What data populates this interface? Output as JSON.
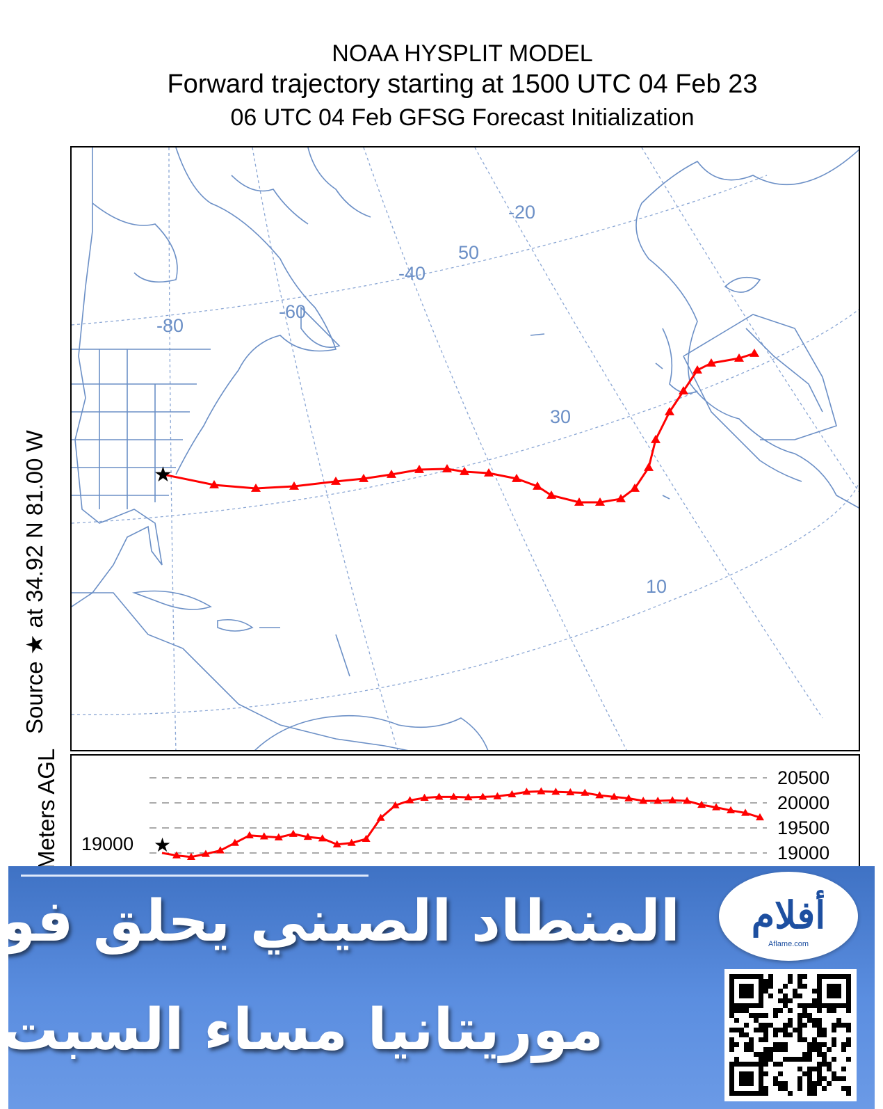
{
  "titles": {
    "line1": "NOAA HYSPLIT MODEL",
    "line2": "Forward trajectory starting at 1500 UTC 04 Feb 23",
    "line3": "06 UTC 04 Feb    GFSG  Forecast Initialization"
  },
  "side_label": "Source ★   at   34.92 N   81.00 W",
  "map": {
    "grid_labels": [
      "-20",
      "50",
      "-40",
      "-60",
      "-80",
      "30",
      "10"
    ],
    "colors": {
      "land": "#6b8fc6",
      "trajectory": "#ff0000",
      "grid": "#8aa6d4"
    },
    "source_marker": "star-icon"
  },
  "chart_data": {
    "type": "line",
    "title": "",
    "ylabel": "Meters AGL",
    "y_ticks_right": [
      "20500",
      "20000",
      "19500",
      "19000"
    ],
    "y_tick_left": "19000",
    "series": [
      {
        "values": [
          19000,
          18950,
          18920,
          18980,
          19050,
          19200,
          19350,
          19330,
          19310,
          19380,
          19320,
          19290,
          19170,
          19200,
          19280,
          19700,
          19950,
          20050,
          20100,
          20120,
          20120,
          20110,
          20120,
          20130,
          20170,
          20220,
          20230,
          20220,
          20210,
          20200,
          20150,
          20120,
          20090,
          20040,
          20040,
          20050,
          20040,
          19960,
          19910,
          19850,
          19800,
          19710
        ]
      }
    ]
  },
  "banner": {
    "headline_line1": "المنطاد الصيني يحلق فوق",
    "headline_line2": "موريتانيا مساء السبت",
    "logo_text": "أفلام",
    "logo_sub": "Aflame.com"
  }
}
